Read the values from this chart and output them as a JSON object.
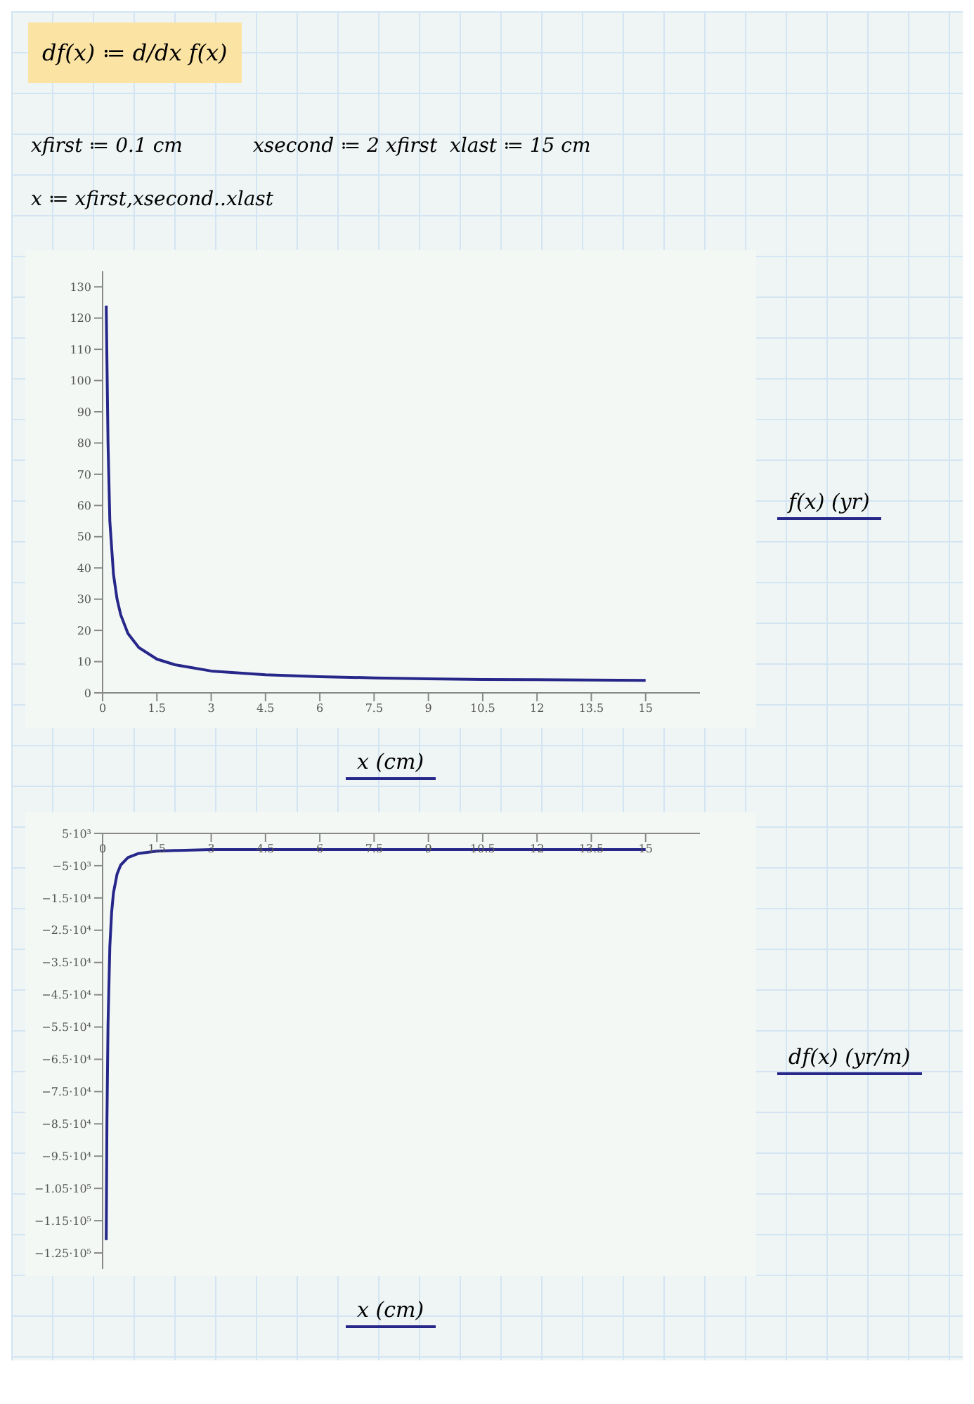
{
  "chart_data": [
    {
      "type": "line",
      "annotations": [
        "df(x) ≔ d/dx f(x)",
        "xfirst ≔ 0.1 cm",
        "xsecond ≔ 2 xfirst",
        "xlast ≔ 15 cm",
        "x ≔ xfirst,xsecond..xlast"
      ],
      "xlabel": "x (cm)",
      "ylabel": "f(x) (yr)",
      "xlim": [
        0,
        16.5
      ],
      "ylim": [
        0,
        135
      ],
      "xticks": [
        0,
        1.5,
        3,
        4.5,
        6,
        7.5,
        9,
        10.5,
        12,
        13.5,
        15
      ],
      "yticks": [
        0,
        10,
        20,
        30,
        40,
        50,
        60,
        70,
        80,
        90,
        100,
        110,
        120,
        130
      ],
      "series": [
        {
          "color": "#27278a",
          "x": [
            0.1,
            0.15,
            0.2,
            0.3,
            0.4,
            0.5,
            0.7,
            1,
            1.5,
            2,
            3,
            4.5,
            6,
            7.5,
            9,
            10.5,
            12,
            13.5,
            15
          ],
          "values": [
            124,
            80,
            55,
            38,
            30,
            25,
            19,
            14.5,
            10.8,
            9,
            7,
            5.8,
            5.2,
            4.8,
            4.5,
            4.3,
            4.2,
            4.1,
            4
          ]
        }
      ]
    },
    {
      "type": "line",
      "xlabel": "x (cm)",
      "ylabel": "df(x) (yr/m)",
      "xlim": [
        0,
        16.5
      ],
      "ylim": [
        -130000,
        5000
      ],
      "xticks": [
        0,
        1.5,
        3,
        4.5,
        6,
        7.5,
        9,
        10.5,
        12,
        13.5,
        15
      ],
      "yticks": [
        {
          "value": 5000,
          "label": "5·10³"
        },
        {
          "value": -5000,
          "label": "−5·10³"
        },
        {
          "value": -15000,
          "label": "−1.5·10⁴"
        },
        {
          "value": -25000,
          "label": "−2.5·10⁴"
        },
        {
          "value": -35000,
          "label": "−3.5·10⁴"
        },
        {
          "value": -45000,
          "label": "−4.5·10⁴"
        },
        {
          "value": -55000,
          "label": "−5.5·10⁴"
        },
        {
          "value": -65000,
          "label": "−6.5·10⁴"
        },
        {
          "value": -75000,
          "label": "−7.5·10⁴"
        },
        {
          "value": -85000,
          "label": "−8.5·10⁴"
        },
        {
          "value": -95000,
          "label": "−9.5·10⁴"
        },
        {
          "value": -105000,
          "label": "−1.05·10⁵"
        },
        {
          "value": -115000,
          "label": "−1.15·10⁵"
        },
        {
          "value": -125000,
          "label": "−1.25·10⁵"
        }
      ],
      "series": [
        {
          "color": "#27278a",
          "x": [
            0.1,
            0.12,
            0.15,
            0.2,
            0.25,
            0.3,
            0.4,
            0.5,
            0.7,
            1,
            1.5,
            2,
            3,
            5,
            7.5,
            10,
            15
          ],
          "values": [
            -121000,
            -84000,
            -54000,
            -30000,
            -19400,
            -13400,
            -7600,
            -4800,
            -2500,
            -1200,
            -500,
            -300,
            0,
            0,
            0,
            0,
            0
          ]
        }
      ]
    }
  ]
}
